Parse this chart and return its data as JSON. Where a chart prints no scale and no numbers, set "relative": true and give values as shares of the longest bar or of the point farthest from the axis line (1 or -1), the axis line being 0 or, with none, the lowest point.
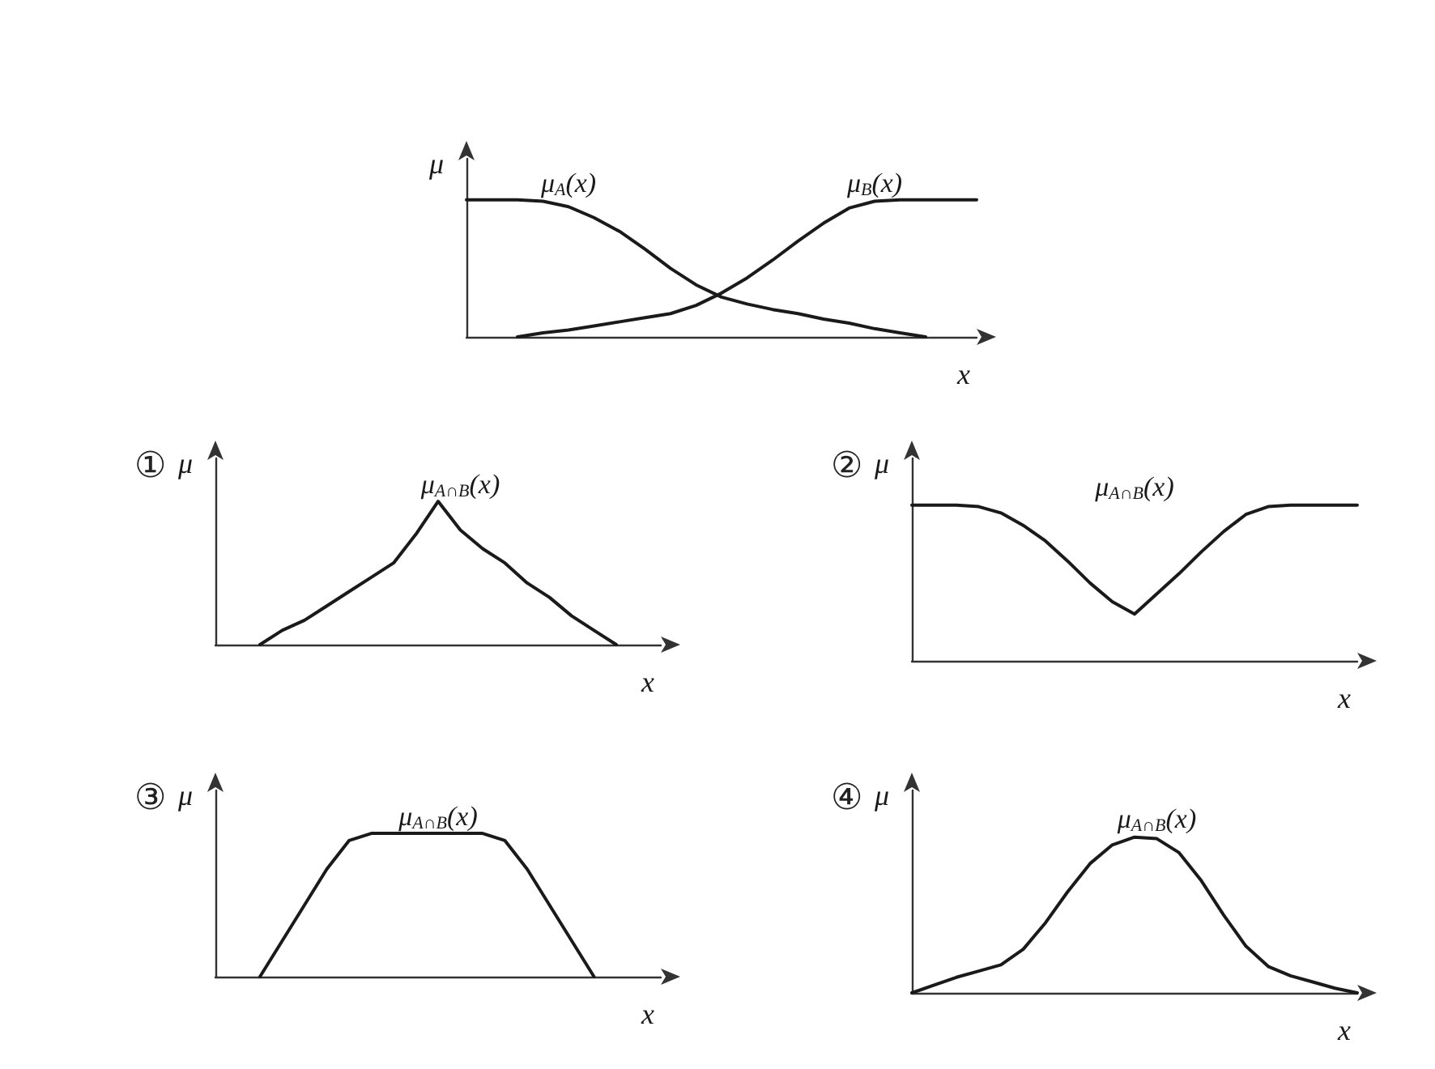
{
  "chart_data": [
    {
      "type": "line",
      "xlabel": "x",
      "ylabel": "μ",
      "relative": true,
      "marker": "none",
      "categories": [
        null,
        null,
        null,
        null,
        null,
        null,
        null,
        null,
        null,
        null,
        null,
        null,
        null,
        null,
        null,
        null,
        null,
        null,
        null,
        null,
        null
      ],
      "series": [
        {
          "name": "μ$_{A}$(x)",
          "color": "#1a1a1a",
          "values": [
            1,
            1,
            1,
            0.99,
            0.95,
            0.87,
            0.77,
            0.64,
            0.5,
            0.38,
            0.29,
            0.24,
            0.2,
            0.17,
            0.13,
            0.1,
            0.06,
            0.03,
            0,
            null,
            null
          ]
        },
        {
          "name": "μ$_{B}$(x)",
          "color": "#1a1a1a",
          "values": [
            null,
            null,
            0,
            0.03,
            0.05,
            0.08,
            0.11,
            0.14,
            0.17,
            0.23,
            0.32,
            0.43,
            0.56,
            0.7,
            0.83,
            0.94,
            0.99,
            1,
            1,
            1,
            1
          ]
        }
      ]
    },
    {
      "type": "line",
      "title": "①",
      "xlabel": "x",
      "ylabel": "μ",
      "relative": true,
      "marker": "none",
      "categories": [
        null,
        null,
        null,
        null,
        null,
        null,
        null,
        null,
        null,
        null,
        null,
        null,
        null,
        null,
        null,
        null,
        null,
        null,
        null,
        null,
        null
      ],
      "series": [
        {
          "name": "μ$_{A∩B}$(x)",
          "color": "#1a1a1a",
          "values": [
            null,
            null,
            0,
            0.1,
            0.17,
            0.27,
            0.37,
            0.47,
            0.57,
            0.77,
            1,
            0.8,
            0.67,
            0.57,
            0.43,
            0.33,
            0.2,
            0.1,
            0,
            null,
            null
          ]
        }
      ]
    },
    {
      "type": "line",
      "title": "②",
      "xlabel": "x",
      "ylabel": "μ",
      "relative": true,
      "marker": "none",
      "categories": [
        null,
        null,
        null,
        null,
        null,
        null,
        null,
        null,
        null,
        null,
        null,
        null,
        null,
        null,
        null,
        null,
        null,
        null,
        null,
        null,
        null
      ],
      "series": [
        {
          "name": "μ$_{A∩B}$(x)",
          "color": "#1a1a1a",
          "values": [
            1,
            1,
            1,
            0.99,
            0.95,
            0.87,
            0.77,
            0.64,
            0.5,
            0.38,
            0.3,
            0.43,
            0.56,
            0.7,
            0.83,
            0.94,
            0.99,
            1,
            1,
            1,
            1
          ]
        }
      ]
    },
    {
      "type": "line",
      "title": "③",
      "xlabel": "x",
      "ylabel": "μ",
      "relative": true,
      "marker": "none",
      "categories": [
        null,
        null,
        null,
        null,
        null,
        null,
        null,
        null,
        null,
        null,
        null,
        null,
        null,
        null,
        null,
        null,
        null,
        null,
        null,
        null,
        null
      ],
      "series": [
        {
          "name": "μ$_{A∩B}$(x)",
          "color": "#1a1a1a",
          "values": [
            null,
            null,
            0,
            0.25,
            0.5,
            0.75,
            0.95,
            1,
            1,
            1,
            1,
            1,
            1,
            0.95,
            0.75,
            0.5,
            0.25,
            0,
            null,
            null,
            null
          ]
        }
      ]
    },
    {
      "type": "line",
      "title": "④",
      "xlabel": "x",
      "ylabel": "μ",
      "relative": true,
      "marker": "none",
      "categories": [
        null,
        null,
        null,
        null,
        null,
        null,
        null,
        null,
        null,
        null,
        null,
        null,
        null,
        null,
        null,
        null,
        null,
        null,
        null,
        null,
        null
      ],
      "series": [
        {
          "name": "μ$_{A∩B}$(x)",
          "color": "#1a1a1a",
          "values": [
            0,
            0.05,
            0.1,
            0.14,
            0.18,
            0.28,
            0.45,
            0.65,
            0.83,
            0.95,
            1,
            0.99,
            0.9,
            0.72,
            0.5,
            0.3,
            0.17,
            0.11,
            0.07,
            0.03,
            0
          ]
        }
      ]
    }
  ]
}
